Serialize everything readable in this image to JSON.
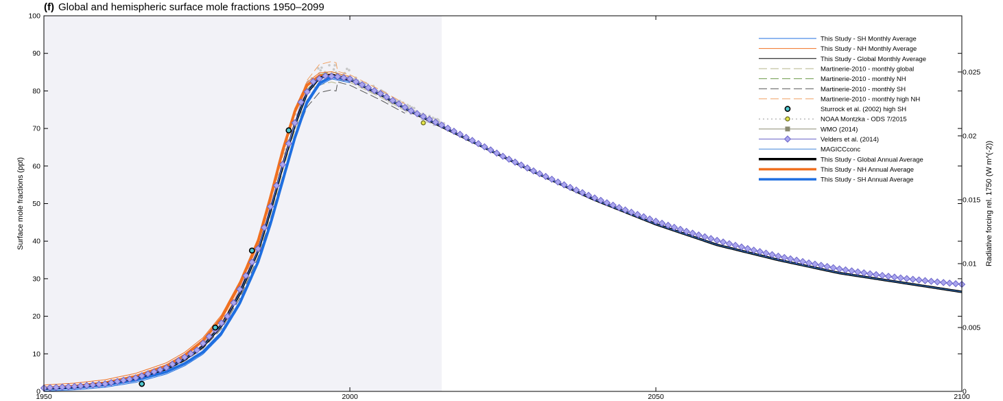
{
  "panel": "(f)",
  "title": "Global and hemispheric surface mole fractions 1950–2099",
  "chart_data": {
    "type": "line",
    "xlim": [
      1950,
      2100
    ],
    "ylim": [
      0,
      100
    ],
    "y2lim": [
      0,
      0.0294
    ],
    "x_ticks": [
      "1950",
      "2000",
      "2050",
      "2100"
    ],
    "y_ticks": [
      "0",
      "10",
      "20",
      "30",
      "40",
      "50",
      "60",
      "70",
      "80",
      "90",
      "100"
    ],
    "y2_ticks": [
      "0",
      "0.005",
      "0.01",
      "0.015",
      "0.02",
      "0.025"
    ],
    "ylabel": "Surface mole fractions (ppt)",
    "y2label": "Radiative forcing rel. 1750 (W m^(-2))",
    "grid": false,
    "legend_position": "top-right",
    "historical_shading": [
      1950,
      2015
    ],
    "legend": [
      "This Study - SH Monthly Average",
      "This Study - NH Monthly Average",
      "This Study - Global Monthly Average",
      "Martinerie-2010 - monthly global",
      "Martinerie-2010 - monthly NH",
      "Martinerie-2010 - monthly SH",
      "Martinerie-2010 - monthly high NH",
      "Sturrock et al. (2002) high SH",
      "NOAA Montzka - ODS 7/2015",
      "WMO (2014)",
      "Velders et al. (2014)",
      "MAGICCconc",
      "This Study - Global Annual Average",
      "This Study - NH Annual Average",
      "This Study - SH Annual Average"
    ],
    "colors": {
      "sh": "#1f6fe0",
      "nh": "#f07020",
      "global": "#000000",
      "martinerie_global": "#b5b58a",
      "martinerie_nh": "#6c9a4a",
      "martinerie_sh": "#555555",
      "martinerie_high_nh": "#f0a060",
      "sturrock_edge": "#000000",
      "sturrock_fill": "#4fc8d0",
      "noaa_edge": "#6b6b20",
      "noaa_fill": "#e6e64a",
      "wmo": "#8a8a70",
      "velders_edge": "#6a63c8",
      "velders_fill": "#aaa6ee",
      "magicc": "#3c82d8",
      "shading": "#f2f2f7",
      "noise": "#c8c8c8"
    },
    "series": [
      {
        "name": "This Study - Global Annual Average",
        "x": [
          1950,
          1955,
          1960,
          1965,
          1970,
          1973,
          1976,
          1979,
          1982,
          1985,
          1987,
          1989,
          1991,
          1993,
          1995,
          1997,
          2000,
          2005,
          2010,
          2015,
          2020,
          2030,
          2040,
          2050,
          2060,
          2070,
          2080,
          2090,
          2100
        ],
        "y": [
          0.8,
          1.2,
          2.0,
          3.5,
          6.0,
          8.5,
          12.0,
          17.5,
          26.0,
          37.5,
          48.0,
          60.0,
          71.0,
          79.5,
          83.5,
          84.3,
          83.0,
          79.0,
          74.5,
          70.5,
          66.5,
          58.5,
          51.0,
          44.5,
          39.0,
          35.0,
          31.5,
          29.0,
          26.5
        ]
      },
      {
        "name": "This Study - NH Annual Average",
        "x": [
          1950,
          1955,
          1960,
          1965,
          1970,
          1973,
          1976,
          1979,
          1982,
          1985,
          1987,
          1989,
          1991,
          1993,
          1995,
          1997,
          2000
        ],
        "y": [
          0.9,
          1.4,
          2.3,
          4.0,
          6.8,
          9.6,
          13.5,
          19.5,
          28.5,
          40.0,
          51.5,
          64.0,
          74.5,
          81.5,
          84.0,
          84.3,
          83.0
        ]
      },
      {
        "name": "This Study - SH Annual Average",
        "x": [
          1950,
          1955,
          1960,
          1965,
          1970,
          1973,
          1976,
          1979,
          1982,
          1985,
          1987,
          1989,
          1991,
          1993,
          1995,
          1997,
          2000
        ],
        "y": [
          0.7,
          1.0,
          1.7,
          3.0,
          5.2,
          7.4,
          10.5,
          15.5,
          23.5,
          34.5,
          44.5,
          56.0,
          67.5,
          77.0,
          82.0,
          83.8,
          82.8
        ]
      },
      {
        "name": "Velders et al. (2014)",
        "x": [
          1950,
          1955,
          1960,
          1965,
          1970,
          1975,
          1980,
          1985,
          1990,
          1992,
          1994,
          1996,
          1998,
          2000,
          2005,
          2010,
          2015,
          2020,
          2025,
          2030,
          2035,
          2040,
          2045,
          2050,
          2055,
          2060,
          2065,
          2070,
          2075,
          2080,
          2085,
          2090,
          2095,
          2100
        ],
        "y": [
          0.9,
          1.3,
          2.0,
          3.6,
          6.3,
          11.0,
          20.0,
          38.0,
          66.0,
          77.0,
          82.5,
          84.0,
          83.8,
          83.2,
          79.3,
          74.7,
          70.9,
          66.8,
          62.6,
          58.7,
          55.0,
          51.5,
          48.3,
          45.3,
          42.6,
          40.2,
          38.0,
          36.0,
          34.2,
          32.6,
          31.3,
          30.2,
          29.3,
          28.5
        ]
      },
      {
        "name": "Sturrock et al. (2002) high SH",
        "x": [
          1966,
          1978,
          1984,
          1990
        ],
        "y": [
          2,
          17,
          37.5,
          69.5
        ]
      },
      {
        "name": "NOAA Montzka - ODS 7/2015",
        "x": [
          2012
        ],
        "y": [
          71.5
        ]
      }
    ]
  }
}
